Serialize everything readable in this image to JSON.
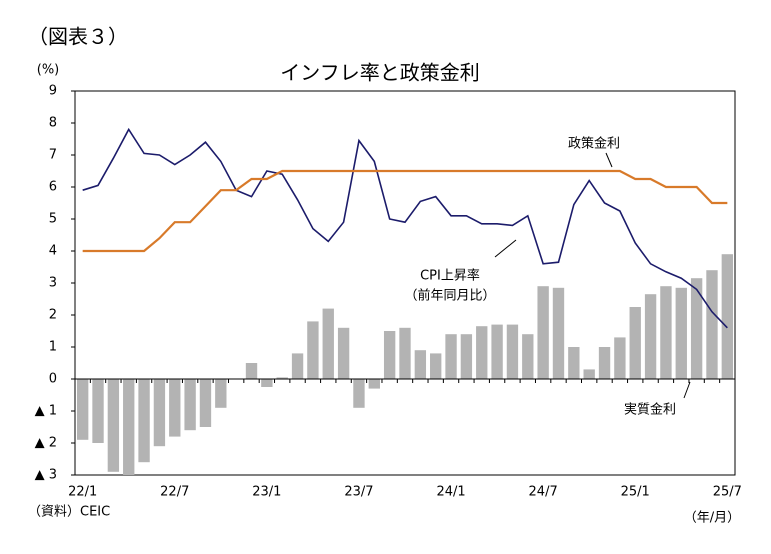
{
  "chart_data": {
    "type": "bar_line",
    "figure_label": "（図表３）",
    "title": "インフレ率と政策金利",
    "y_unit": "(%)",
    "x_unit": "（年/月）",
    "source": "（資料）CEIC",
    "cpi_note": "（前年同月比）",
    "categories": [
      "22/1",
      null,
      null,
      null,
      null,
      null,
      "22/7",
      null,
      null,
      null,
      null,
      null,
      "23/1",
      null,
      null,
      null,
      null,
      null,
      "23/7",
      null,
      null,
      null,
      null,
      null,
      "24/1",
      null,
      null,
      null,
      null,
      null,
      "24/7",
      null,
      null,
      null,
      null,
      null,
      "25/1",
      null,
      null,
      null,
      null,
      null,
      "25/7"
    ],
    "ylim": [
      -3,
      9
    ],
    "yticks": [
      {
        "value": -3,
        "label": "▲ 3"
      },
      {
        "value": -2,
        "label": "▲ 2"
      },
      {
        "value": -1,
        "label": "▲ 1"
      },
      0,
      1,
      2,
      3,
      4,
      5,
      6,
      7,
      8,
      9
    ],
    "series": [
      {
        "name": "実質金利",
        "type": "bar",
        "color": "#b3b3b3",
        "values": [
          -1.9,
          -2.0,
          -2.9,
          -3.0,
          -2.6,
          -2.1,
          -1.8,
          -1.6,
          -1.5,
          -0.9,
          0,
          0.5,
          -0.25,
          0.05,
          0.8,
          1.8,
          2.2,
          1.6,
          -0.9,
          -0.3,
          1.5,
          1.6,
          0.9,
          0.8,
          1.4,
          1.4,
          1.65,
          1.7,
          1.7,
          1.4,
          2.9,
          2.85,
          1.0,
          0.3,
          1.0,
          1.3,
          2.25,
          2.65,
          2.9,
          2.85,
          3.15,
          3.4,
          3.9
        ]
      },
      {
        "name": "CPI上昇率",
        "type": "line",
        "color": "#1c1c6b",
        "values": [
          5.9,
          6.05,
          6.9,
          7.8,
          7.05,
          7.0,
          6.7,
          7.0,
          7.4,
          6.8,
          5.9,
          5.7,
          6.5,
          6.4,
          5.6,
          4.7,
          4.3,
          4.9,
          7.45,
          6.8,
          5.0,
          4.9,
          5.55,
          5.7,
          5.1,
          5.1,
          4.85,
          4.85,
          4.8,
          5.1,
          3.6,
          3.65,
          5.45,
          6.2,
          5.5,
          5.25,
          4.25,
          3.6,
          3.35,
          3.15,
          2.8,
          2.1,
          1.6
        ]
      },
      {
        "name": "政策金利",
        "type": "line",
        "color": "#d87a2a",
        "values": [
          4,
          4,
          4,
          4,
          4,
          4.4,
          4.9,
          4.9,
          5.4,
          5.9,
          5.9,
          6.25,
          6.25,
          6.5,
          6.5,
          6.5,
          6.5,
          6.5,
          6.5,
          6.5,
          6.5,
          6.5,
          6.5,
          6.5,
          6.5,
          6.5,
          6.5,
          6.5,
          6.5,
          6.5,
          6.5,
          6.5,
          6.5,
          6.5,
          6.5,
          6.5,
          6.25,
          6.25,
          6.0,
          6.0,
          6.0,
          5.5,
          5.5
        ]
      }
    ]
  }
}
